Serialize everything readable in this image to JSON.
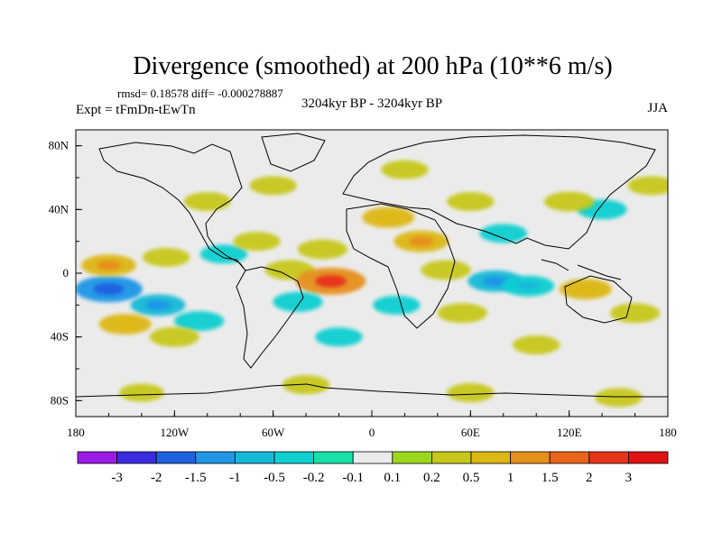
{
  "chart_data": {
    "type": "heatmap",
    "title": "Divergence (smoothed) at 200 hPa (10**6 m/s)",
    "stats_line": "rmsd= 0.18578 diff= -0.000278887",
    "left_subtitle": "Expt = tFmDn-tEwTn",
    "center_subtitle": "3204kyr BP - 3204kyr BP",
    "right_subtitle": "JJA",
    "x_ticks": [
      {
        "value": -180,
        "label": "180"
      },
      {
        "value": -120,
        "label": "120W"
      },
      {
        "value": -60,
        "label": "60W"
      },
      {
        "value": 0,
        "label": "0"
      },
      {
        "value": 60,
        "label": "60E"
      },
      {
        "value": 120,
        "label": "120E"
      },
      {
        "value": 180,
        "label": "180"
      }
    ],
    "y_ticks": [
      {
        "value": 80,
        "label": "80N"
      },
      {
        "value": 40,
        "label": "40N"
      },
      {
        "value": 0,
        "label": "0"
      },
      {
        "value": -40,
        "label": "40S"
      },
      {
        "value": -80,
        "label": "80S"
      }
    ],
    "xlim": [
      -180,
      180
    ],
    "ylim": [
      -90,
      90
    ],
    "colorbar": {
      "labels": [
        "-3",
        "-2",
        "-1.5",
        "-1",
        "-0.5",
        "-0.2",
        "-0.1",
        "0.1",
        "0.2",
        "0.5",
        "1",
        "1.5",
        "2",
        "3"
      ],
      "colors": [
        "#9a1ce6",
        "#3b2be0",
        "#1f62e0",
        "#1f96e6",
        "#17b9d8",
        "#10cfd0",
        "#17e0a8",
        "#ebebeb",
        "#9bd81c",
        "#c7c81a",
        "#ddb813",
        "#e6901a",
        "#e8641a",
        "#e8341a",
        "#e01414"
      ]
    },
    "anomalies": [
      {
        "lon": -160,
        "lat": -10,
        "value": -1.1
      },
      {
        "lon": -130,
        "lat": -20,
        "value": -0.6
      },
      {
        "lon": -105,
        "lat": -30,
        "value": -0.4
      },
      {
        "lon": -150,
        "lat": -32,
        "value": 0.5
      },
      {
        "lon": -120,
        "lat": -40,
        "value": 0.4
      },
      {
        "lon": -160,
        "lat": 5,
        "value": 0.6
      },
      {
        "lon": -125,
        "lat": 10,
        "value": 0.3
      },
      {
        "lon": -90,
        "lat": 12,
        "value": -0.3
      },
      {
        "lon": -70,
        "lat": 20,
        "value": 0.3
      },
      {
        "lon": -50,
        "lat": 2,
        "value": 0.4
      },
      {
        "lon": -25,
        "lat": -5,
        "value": 1.2
      },
      {
        "lon": -45,
        "lat": -18,
        "value": -0.4
      },
      {
        "lon": -30,
        "lat": 15,
        "value": 0.4
      },
      {
        "lon": 10,
        "lat": 35,
        "value": 0.5
      },
      {
        "lon": 30,
        "lat": 20,
        "value": 0.6
      },
      {
        "lon": 45,
        "lat": 2,
        "value": 0.4
      },
      {
        "lon": 75,
        "lat": -5,
        "value": -0.6
      },
      {
        "lon": 95,
        "lat": -8,
        "value": -0.5
      },
      {
        "lon": 55,
        "lat": -25,
        "value": 0.4
      },
      {
        "lon": 15,
        "lat": -20,
        "value": -0.3
      },
      {
        "lon": 130,
        "lat": -10,
        "value": 0.5
      },
      {
        "lon": 160,
        "lat": -25,
        "value": 0.4
      },
      {
        "lon": 140,
        "lat": 40,
        "value": -0.4
      },
      {
        "lon": 120,
        "lat": 45,
        "value": 0.4
      },
      {
        "lon": 170,
        "lat": 55,
        "value": 0.3
      },
      {
        "lon": 60,
        "lat": 45,
        "value": 0.3
      },
      {
        "lon": 80,
        "lat": 25,
        "value": -0.3
      },
      {
        "lon": -100,
        "lat": 45,
        "value": 0.3
      },
      {
        "lon": -60,
        "lat": 55,
        "value": 0.3
      },
      {
        "lon": 20,
        "lat": 65,
        "value": 0.3
      },
      {
        "lon": -20,
        "lat": -40,
        "value": -0.3
      },
      {
        "lon": 100,
        "lat": -45,
        "value": 0.3
      },
      {
        "lon": -140,
        "lat": -75,
        "value": 0.2
      },
      {
        "lon": -40,
        "lat": -70,
        "value": 0.3
      },
      {
        "lon": 60,
        "lat": -75,
        "value": 0.3
      },
      {
        "lon": 150,
        "lat": -78,
        "value": 0.3
      }
    ]
  }
}
